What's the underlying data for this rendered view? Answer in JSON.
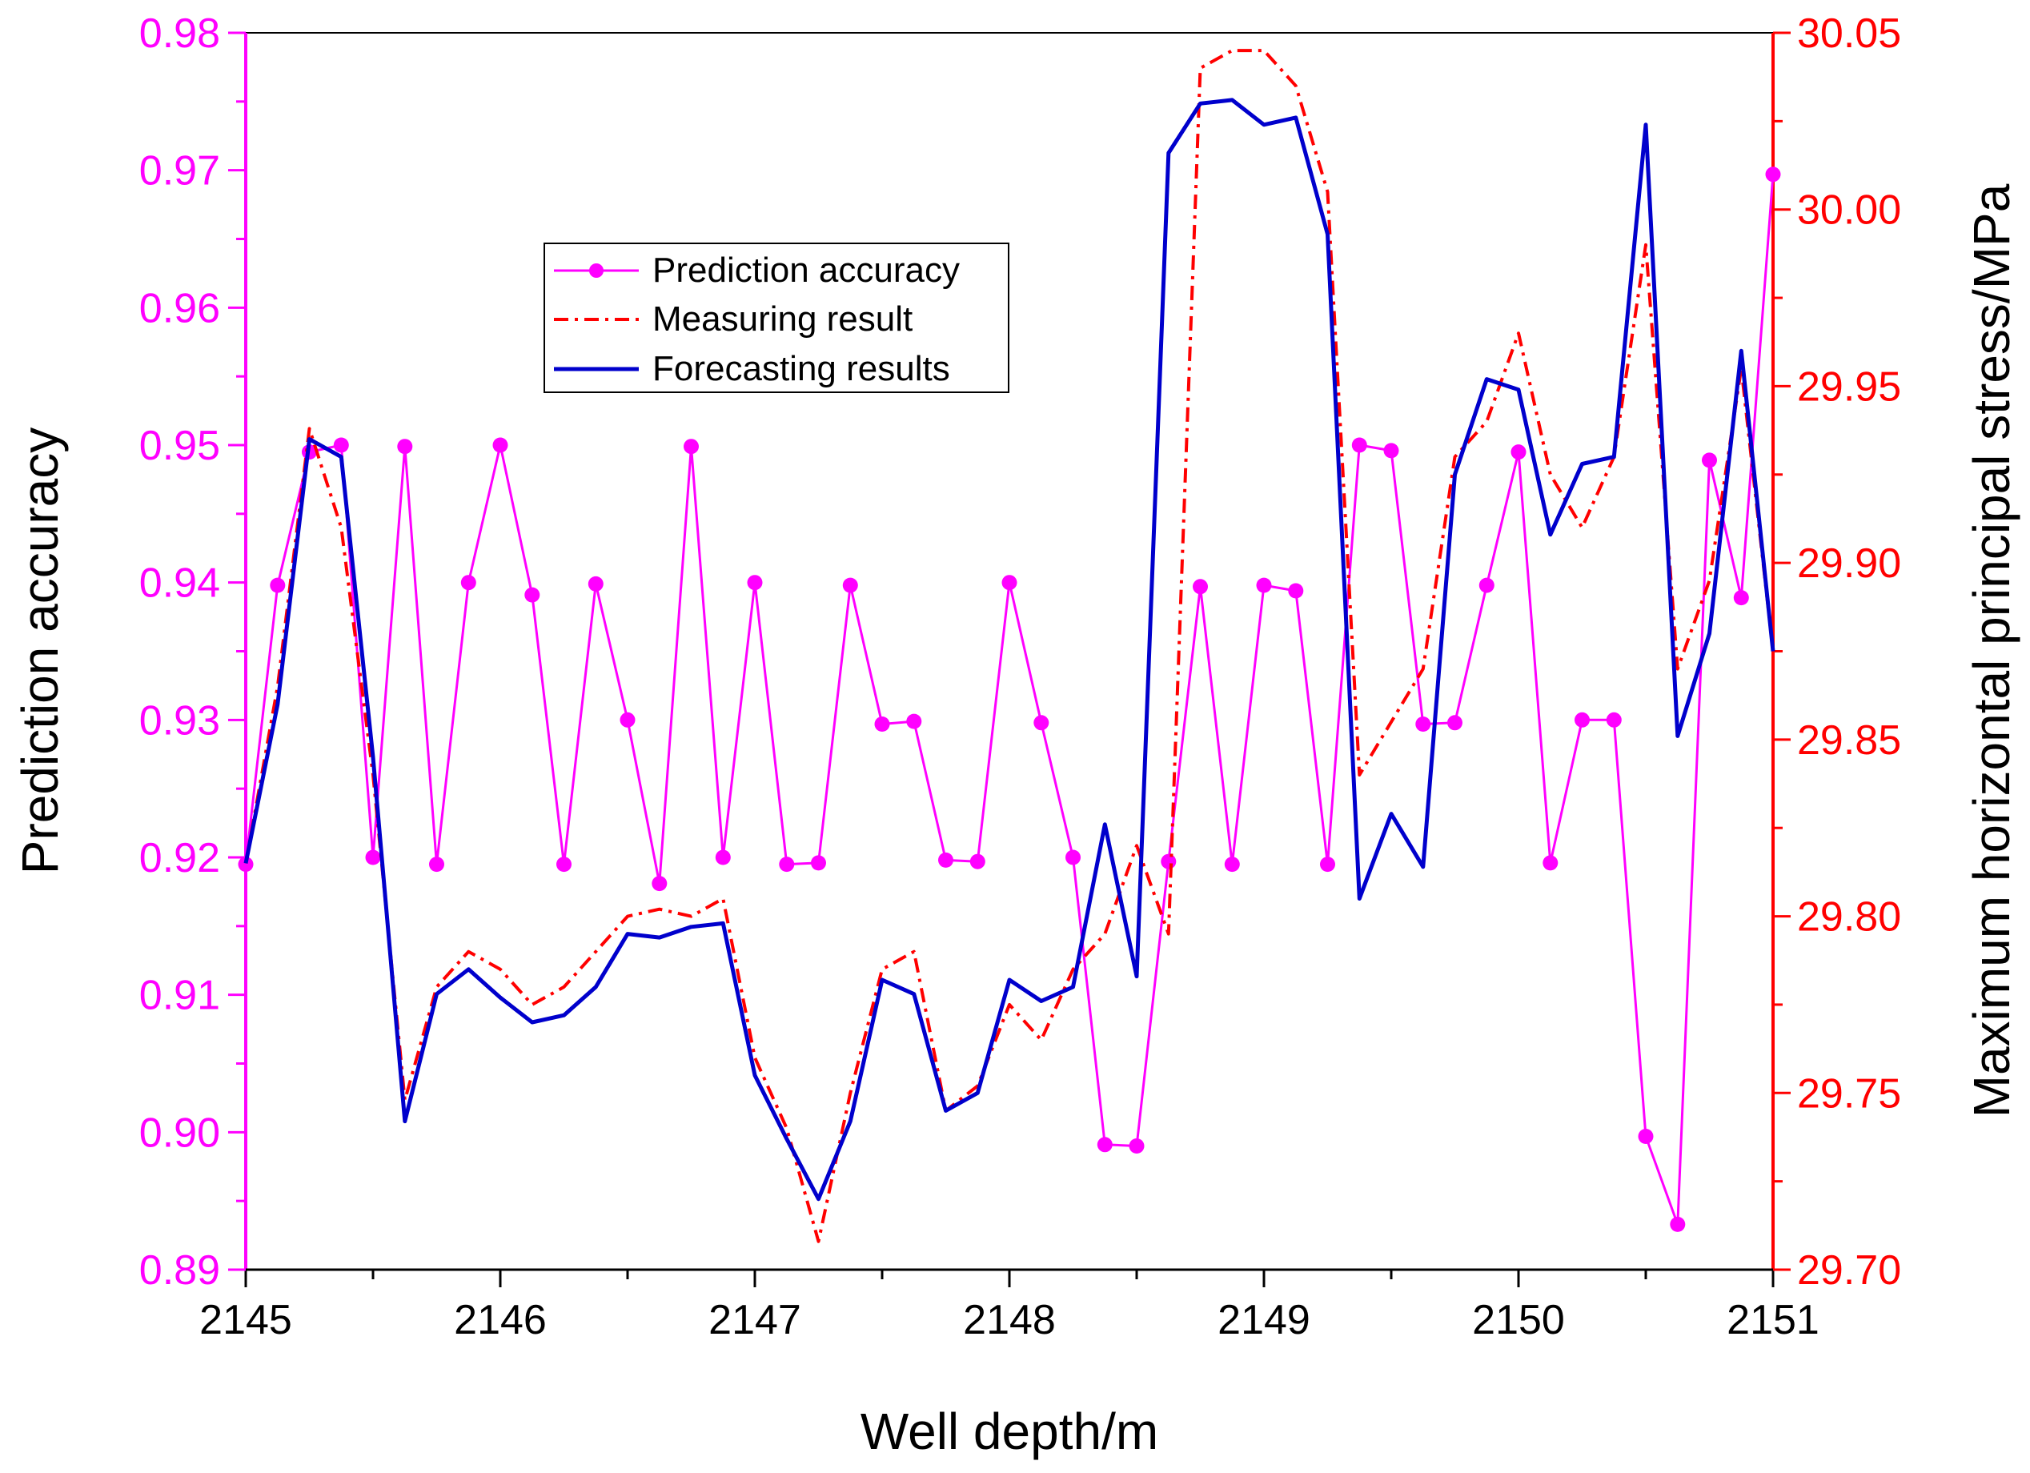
{
  "chart_data": {
    "type": "line",
    "xlabel": "Well depth/m",
    "ylabel_left": "Prediction accuracy",
    "ylabel_right": "Maximum horizontal principal stress/MPa",
    "xlim": [
      2145,
      2151
    ],
    "ylim_left": [
      0.89,
      0.98
    ],
    "ylim_right": [
      29.7,
      30.05
    ],
    "x_ticks": [
      "2145",
      "2146",
      "2147",
      "2148",
      "2149",
      "2150",
      "2151"
    ],
    "y_left_ticks": [
      "0.89",
      "0.90",
      "0.91",
      "0.92",
      "0.93",
      "0.94",
      "0.95",
      "0.96",
      "0.97",
      "0.98"
    ],
    "y_right_ticks": [
      "29.70",
      "29.75",
      "29.80",
      "29.85",
      "29.90",
      "29.95",
      "30.00",
      "30.05"
    ],
    "colors": {
      "accuracy": "#ff00ff",
      "measuring": "#ff0000",
      "forecasting": "#0000cc",
      "right_axis": "#ff0000",
      "left_axis": "#ff00ff"
    },
    "legend_position": "upper-center",
    "series": [
      {
        "name": "Prediction accuracy",
        "axis": "left",
        "style": "line-markers",
        "x": [
          2145.0,
          2145.125,
          2145.25,
          2145.375,
          2145.5,
          2145.625,
          2145.75,
          2145.875,
          2146.0,
          2146.125,
          2146.25,
          2146.375,
          2146.5,
          2146.625,
          2146.75,
          2146.875,
          2147.0,
          2147.125,
          2147.25,
          2147.375,
          2147.5,
          2147.625,
          2147.75,
          2147.875,
          2148.0,
          2148.125,
          2148.25,
          2148.375,
          2148.5,
          2148.625,
          2148.75,
          2148.875,
          2149.0,
          2149.125,
          2149.25,
          2149.375,
          2149.5,
          2149.625,
          2149.75,
          2149.875,
          2150.0,
          2150.125,
          2150.25,
          2150.375,
          2150.5,
          2150.625,
          2150.75,
          2150.875,
          2151.0
        ],
        "values": [
          0.9195,
          0.9398,
          0.9495,
          0.95,
          0.92,
          0.9499,
          0.9195,
          0.94,
          0.95,
          0.9391,
          0.9195,
          0.9399,
          0.93,
          0.9181,
          0.9499,
          0.92,
          0.94,
          0.9195,
          0.9196,
          0.9398,
          0.9297,
          0.9299,
          0.9198,
          0.9197,
          0.94,
          0.9298,
          0.92,
          0.8991,
          0.899,
          0.9197,
          0.9397,
          0.9195,
          0.9398,
          0.9394,
          0.9195,
          0.95,
          0.9496,
          0.9297,
          0.9298,
          0.9398,
          0.9495,
          0.9196,
          0.93,
          0.93,
          0.8997,
          0.8933,
          0.9489,
          0.9389,
          0.9697
        ]
      },
      {
        "name": "Measuring result",
        "axis": "right",
        "style": "dash-dot",
        "x": [
          2145.0,
          2145.125,
          2145.25,
          2145.375,
          2145.5,
          2145.625,
          2145.75,
          2145.875,
          2146.0,
          2146.125,
          2146.25,
          2146.375,
          2146.5,
          2146.625,
          2146.75,
          2146.875,
          2147.0,
          2147.125,
          2147.25,
          2147.375,
          2147.5,
          2147.625,
          2147.75,
          2147.875,
          2148.0,
          2148.125,
          2148.25,
          2148.375,
          2148.5,
          2148.625,
          2148.75,
          2148.875,
          2149.0,
          2149.125,
          2149.25,
          2149.375,
          2149.5,
          2149.625,
          2149.75,
          2149.875,
          2150.0,
          2150.125,
          2150.25,
          2150.375,
          2150.5,
          2150.625,
          2150.75,
          2150.875,
          2151.0
        ],
        "values": [
          29.815,
          29.865,
          29.938,
          29.91,
          29.84,
          29.748,
          29.78,
          29.79,
          29.785,
          29.775,
          29.78,
          29.79,
          29.8,
          29.802,
          29.8,
          29.805,
          29.76,
          29.74,
          29.708,
          29.75,
          29.785,
          29.79,
          29.745,
          29.752,
          29.775,
          29.765,
          29.785,
          29.795,
          29.82,
          29.795,
          30.04,
          30.045,
          30.045,
          30.035,
          30.005,
          29.84,
          29.855,
          29.87,
          29.93,
          29.94,
          29.965,
          29.925,
          29.91,
          29.93,
          29.99,
          29.87,
          29.895,
          29.955,
          29.875
        ]
      },
      {
        "name": "Forecasting results",
        "axis": "right",
        "style": "solid",
        "x": [
          2145.0,
          2145.125,
          2145.25,
          2145.375,
          2145.5,
          2145.625,
          2145.75,
          2145.875,
          2146.0,
          2146.125,
          2146.25,
          2146.375,
          2146.5,
          2146.625,
          2146.75,
          2146.875,
          2147.0,
          2147.125,
          2147.25,
          2147.375,
          2147.5,
          2147.625,
          2147.75,
          2147.875,
          2148.0,
          2148.125,
          2148.25,
          2148.375,
          2148.5,
          2148.625,
          2148.75,
          2148.875,
          2149.0,
          2149.125,
          2149.25,
          2149.375,
          2149.5,
          2149.625,
          2149.75,
          2149.875,
          2150.0,
          2150.125,
          2150.25,
          2150.375,
          2150.5,
          2150.625,
          2150.75,
          2150.875,
          2151.0
        ],
        "values": [
          29.815,
          29.86,
          29.935,
          29.93,
          29.845,
          29.742,
          29.778,
          29.785,
          29.777,
          29.77,
          29.772,
          29.78,
          29.795,
          29.794,
          29.797,
          29.798,
          29.755,
          29.737,
          29.72,
          29.742,
          29.782,
          29.778,
          29.745,
          29.75,
          29.782,
          29.776,
          29.78,
          29.826,
          29.783,
          30.016,
          30.03,
          30.031,
          30.024,
          30.026,
          29.993,
          29.805,
          29.829,
          29.814,
          29.925,
          29.952,
          29.949,
          29.908,
          29.928,
          29.93,
          30.024,
          29.851,
          29.88,
          29.96,
          29.875
        ]
      }
    ]
  }
}
